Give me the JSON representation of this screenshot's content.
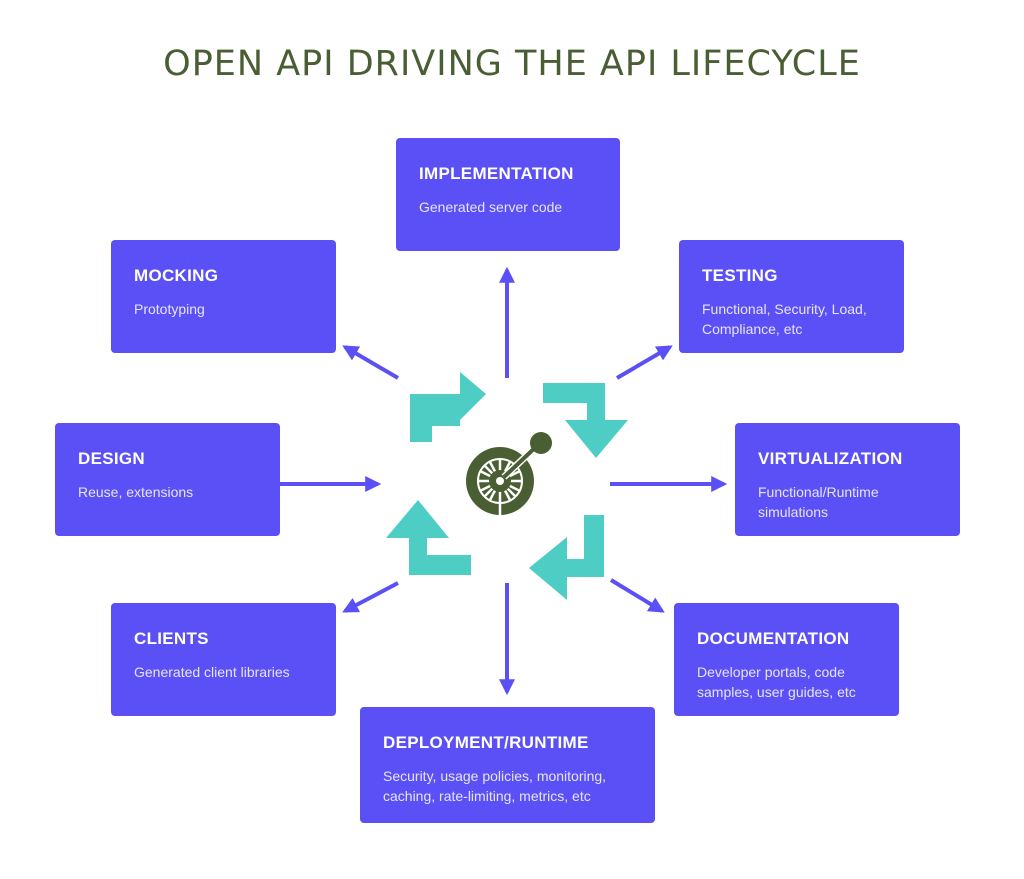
{
  "title": "OPEN API DRIVING THE API LIFECYCLE",
  "colors": {
    "box": "#5a50f5",
    "arrow": "#5a50f5",
    "cycle": "#4ecdc4",
    "logo": "#4a5e33",
    "title": "#4a5e33"
  },
  "center": {
    "icon": "openapi-logo-icon"
  },
  "boxes": {
    "implementation": {
      "heading": "IMPLEMENTATION",
      "sub": "Generated server code"
    },
    "mocking": {
      "heading": "MOCKING",
      "sub": "Prototyping"
    },
    "testing": {
      "heading": "TESTING",
      "sub": "Functional, Security, Load, Compliance, etc"
    },
    "design": {
      "heading": "DESIGN",
      "sub": "Reuse, extensions"
    },
    "virtualization": {
      "heading": "VIRTUALIZATION",
      "sub": "Functional/Runtime simulations"
    },
    "clients": {
      "heading": "CLIENTS",
      "sub": "Generated client libraries"
    },
    "documentation": {
      "heading": "DOCUMENTATION",
      "sub": "Developer portals, code samples, user guides, etc"
    },
    "deployment": {
      "heading": "DEPLOYMENT/RUNTIME",
      "sub": "Security, usage policies, monitoring, caching, rate-limiting, metrics, etc"
    }
  }
}
